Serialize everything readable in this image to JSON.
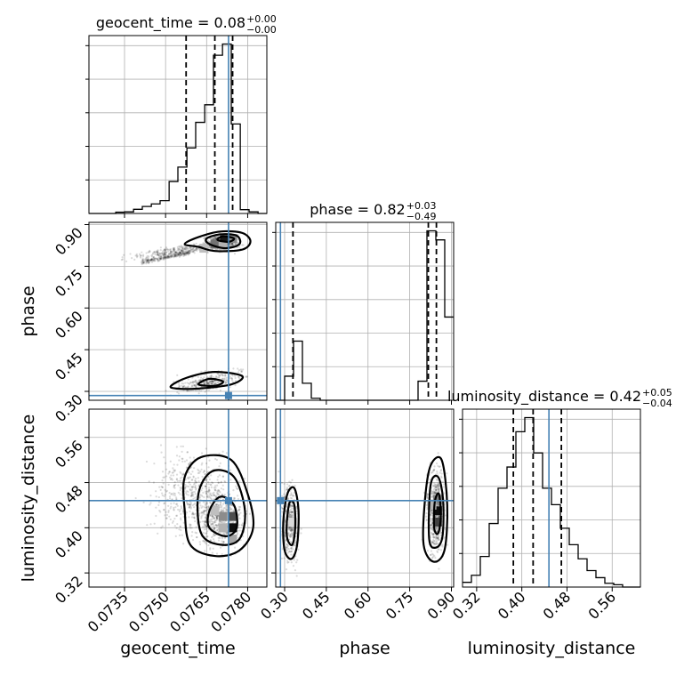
{
  "chart_data": {
    "type": "scatter",
    "subtype": "corner",
    "parameters": [
      "geocent_time",
      "phase",
      "luminosity_distance"
    ],
    "axis_labels": {
      "geocent_time": "geocent_time",
      "phase": "phase",
      "luminosity_distance": "luminosity_distance"
    },
    "ranges": {
      "geocent_time": [
        0.0722,
        0.0787
      ],
      "phase": [
        0.268,
        0.908
      ],
      "luminosity_distance": [
        0.295,
        0.61
      ]
    },
    "ticks": {
      "geocent_time": [
        "0.0735",
        "0.0750",
        "0.0765",
        "0.0780"
      ],
      "phase": [
        "0.30",
        "0.45",
        "0.60",
        "0.75",
        "0.90"
      ],
      "luminosity_distance": [
        "0.32",
        "0.40",
        "0.48",
        "0.56"
      ]
    },
    "truths": {
      "geocent_time": 0.0773,
      "phase": 0.285,
      "luminosity_distance": 0.448
    },
    "titles": [
      {
        "param": "geocent_time",
        "main": "geocent_time = 0.08",
        "upper": "+0.00",
        "lower": "−0.00"
      },
      {
        "param": "phase",
        "main": "phase = 0.82",
        "upper": "+0.03",
        "lower": "−0.49"
      },
      {
        "param": "luminosity_distance",
        "main": "luminosity_distance = 0.42",
        "upper": "+0.05",
        "lower": "−0.04"
      }
    ],
    "histograms": {
      "geocent_time": {
        "edges": [
          0.0722,
          0.07253,
          0.07285,
          0.07318,
          0.0735,
          0.07383,
          0.07415,
          0.07448,
          0.0748,
          0.07513,
          0.07545,
          0.07578,
          0.0761,
          0.07643,
          0.07675,
          0.07708,
          0.0774,
          0.07773,
          0.07805,
          0.07838,
          0.0787
        ],
        "counts": [
          0,
          0,
          0,
          4,
          5,
          13,
          22,
          30,
          40,
          100,
          145,
          205,
          285,
          340,
          495,
          530,
          280,
          12,
          5,
          0
        ],
        "quantiles": [
          0.07575,
          0.0768,
          0.07745
        ]
      },
      "phase": {
        "edges": [
          0.268,
          0.3,
          0.332,
          0.364,
          0.396,
          0.428,
          0.46,
          0.492,
          0.524,
          0.556,
          0.588,
          0.62,
          0.652,
          0.684,
          0.716,
          0.748,
          0.78,
          0.812,
          0.844,
          0.876,
          0.908
        ],
        "counts": [
          0,
          120,
          295,
          85,
          10,
          0,
          0,
          0,
          0,
          0,
          0,
          0,
          0,
          0,
          0,
          0,
          95,
          845,
          800,
          415
        ],
        "quantiles": [
          0.33,
          0.817,
          0.846
        ]
      },
      "luminosity_distance": {
        "edges": [
          0.295,
          0.31075,
          0.3265,
          0.34225,
          0.358,
          0.37375,
          0.3895,
          0.40525,
          0.421,
          0.43675,
          0.4525,
          0.46825,
          0.484,
          0.49975,
          0.5155,
          0.53125,
          0.547,
          0.56275,
          0.5785,
          0.59425,
          0.61
        ],
        "counts": [
          10,
          25,
          65,
          135,
          210,
          255,
          330,
          360,
          285,
          210,
          175,
          125,
          90,
          60,
          35,
          20,
          8,
          5,
          0,
          0
        ],
        "quantiles": [
          0.385,
          0.42,
          0.47
        ]
      }
    }
  }
}
